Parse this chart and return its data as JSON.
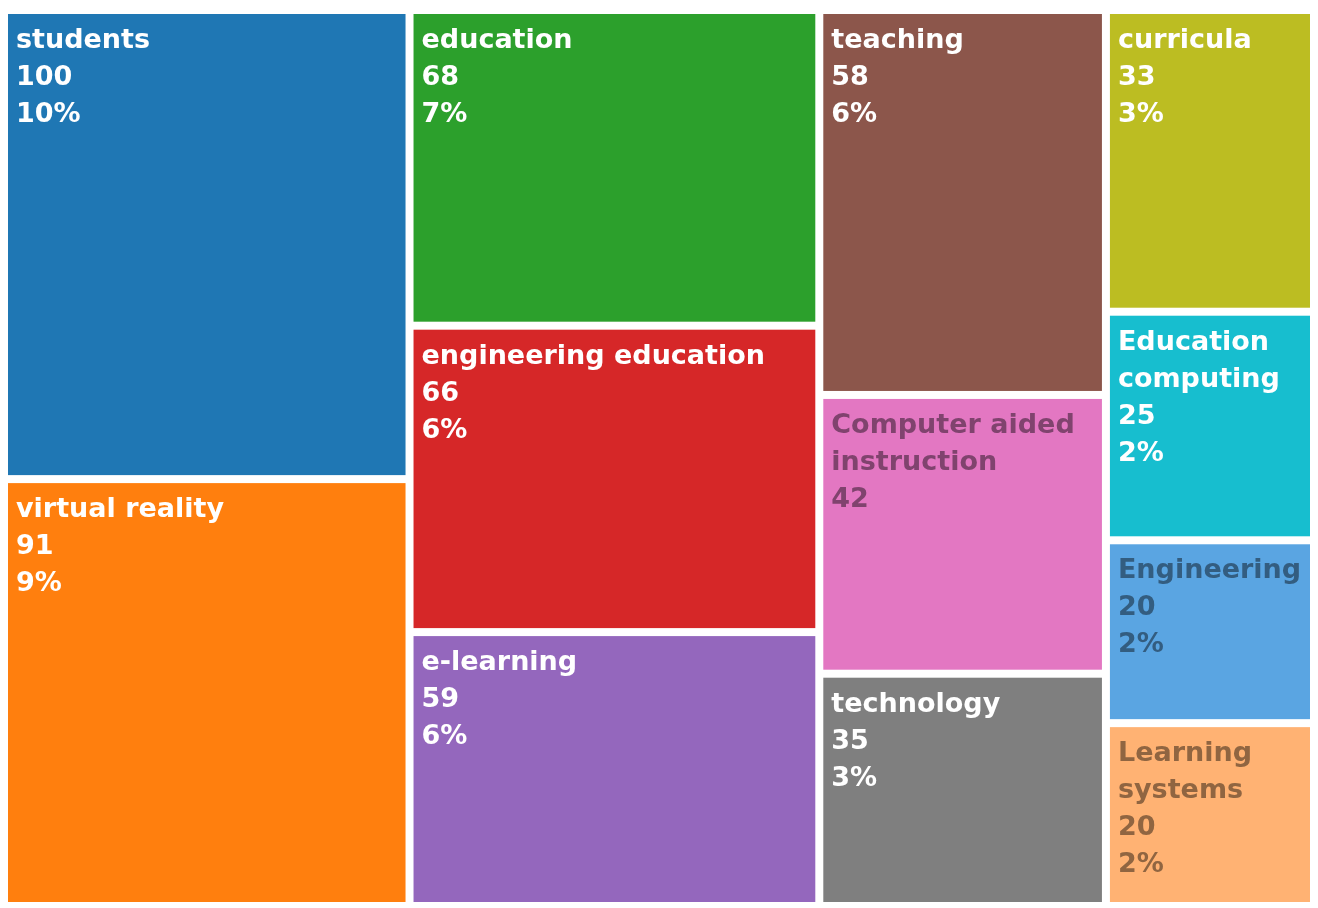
{
  "chart_data": {
    "type": "other",
    "categories": [
      "students",
      "virtual reality",
      "education",
      "engineering education",
      "e-learning",
      "teaching",
      "Computer aided instruction",
      "technology",
      "curricula",
      "Education computing",
      "Engineering",
      "Learning systems"
    ],
    "series": [
      {
        "values": [
          100,
          91,
          68,
          66,
          59,
          58,
          42,
          35,
          33,
          25,
          20,
          20
        ],
        "colors": [
          "#1f77b4",
          "#ff7f0e",
          "#2ca02c",
          "#d62728",
          "#9467bd",
          "#8c564b",
          "#e377c2",
          "#7f7f7f",
          "#bcbd22",
          "#17becf",
          "#5aa5e2",
          "#ffb273"
        ]
      },
      {
        "values": [
          10,
          9,
          7,
          6,
          6,
          6,
          null,
          3,
          3,
          2,
          2,
          2
        ],
        "value_labels": [
          "10%",
          "9%",
          "7%",
          "6%",
          "6%",
          "6%",
          null,
          "3%",
          "3%",
          "2%",
          "2%",
          "2%"
        ]
      }
    ],
    "data_labels": true
  }
}
